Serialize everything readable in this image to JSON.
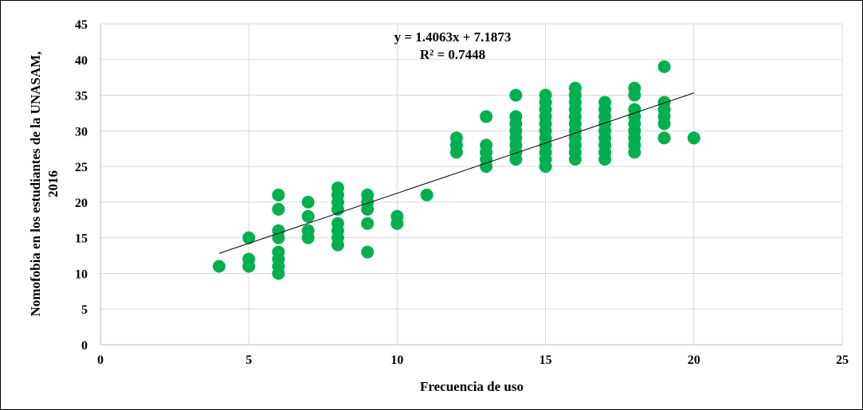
{
  "chart_data": {
    "type": "scatter",
    "xlabel": "Frecuencia de uso",
    "ylabel_line1": "Nomofobia en los estudiantes de la UNASAM,",
    "ylabel_line2": "2016",
    "xlim": [
      0,
      25
    ],
    "ylim": [
      0,
      45
    ],
    "x_ticks": [
      0,
      5,
      10,
      15,
      20,
      25
    ],
    "y_ticks": [
      0,
      5,
      10,
      15,
      20,
      25,
      30,
      35,
      40,
      45
    ],
    "grid": true,
    "marker_color": "#00b050",
    "trendline_color": "#000000",
    "trendline": {
      "slope": 1.4063,
      "intercept": 7.1873,
      "x_range": [
        4,
        20
      ]
    },
    "equation_label": "y = 1.4063x + 7.1873",
    "r2_label": "R² = 0.7448",
    "points": [
      [
        4,
        11
      ],
      [
        5,
        11
      ],
      [
        5,
        12
      ],
      [
        5,
        15
      ],
      [
        6,
        10
      ],
      [
        6,
        11
      ],
      [
        6,
        12
      ],
      [
        6,
        13
      ],
      [
        6,
        15
      ],
      [
        6,
        16
      ],
      [
        6,
        19
      ],
      [
        6,
        21
      ],
      [
        7,
        15
      ],
      [
        7,
        16
      ],
      [
        7,
        18
      ],
      [
        7,
        20
      ],
      [
        8,
        14
      ],
      [
        8,
        15
      ],
      [
        8,
        16
      ],
      [
        8,
        17
      ],
      [
        8,
        19
      ],
      [
        8,
        20
      ],
      [
        8,
        21
      ],
      [
        8,
        22
      ],
      [
        9,
        13
      ],
      [
        9,
        17
      ],
      [
        9,
        19
      ],
      [
        9,
        20
      ],
      [
        9,
        21
      ],
      [
        10,
        17
      ],
      [
        10,
        18
      ],
      [
        11,
        21
      ],
      [
        12,
        27
      ],
      [
        12,
        28
      ],
      [
        12,
        29
      ],
      [
        13,
        25
      ],
      [
        13,
        26
      ],
      [
        13,
        27
      ],
      [
        13,
        28
      ],
      [
        13,
        32
      ],
      [
        14,
        26
      ],
      [
        14,
        27
      ],
      [
        14,
        28
      ],
      [
        14,
        29
      ],
      [
        14,
        30
      ],
      [
        14,
        31
      ],
      [
        14,
        32
      ],
      [
        14,
        35
      ],
      [
        15,
        25
      ],
      [
        15,
        26
      ],
      [
        15,
        27
      ],
      [
        15,
        28
      ],
      [
        15,
        29
      ],
      [
        15,
        30
      ],
      [
        15,
        31
      ],
      [
        15,
        32
      ],
      [
        15,
        33
      ],
      [
        15,
        34
      ],
      [
        15,
        35
      ],
      [
        16,
        26
      ],
      [
        16,
        27
      ],
      [
        16,
        28
      ],
      [
        16,
        29
      ],
      [
        16,
        30
      ],
      [
        16,
        31
      ],
      [
        16,
        32
      ],
      [
        16,
        33
      ],
      [
        16,
        34
      ],
      [
        16,
        35
      ],
      [
        16,
        36
      ],
      [
        17,
        26
      ],
      [
        17,
        27
      ],
      [
        17,
        28
      ],
      [
        17,
        29
      ],
      [
        17,
        30
      ],
      [
        17,
        31
      ],
      [
        17,
        32
      ],
      [
        17,
        33
      ],
      [
        17,
        34
      ],
      [
        18,
        27
      ],
      [
        18,
        28
      ],
      [
        18,
        29
      ],
      [
        18,
        30
      ],
      [
        18,
        31
      ],
      [
        18,
        32
      ],
      [
        18,
        33
      ],
      [
        18,
        35
      ],
      [
        18,
        36
      ],
      [
        19,
        29
      ],
      [
        19,
        31
      ],
      [
        19,
        32
      ],
      [
        19,
        33
      ],
      [
        19,
        34
      ],
      [
        19,
        39
      ],
      [
        20,
        29
      ]
    ]
  }
}
